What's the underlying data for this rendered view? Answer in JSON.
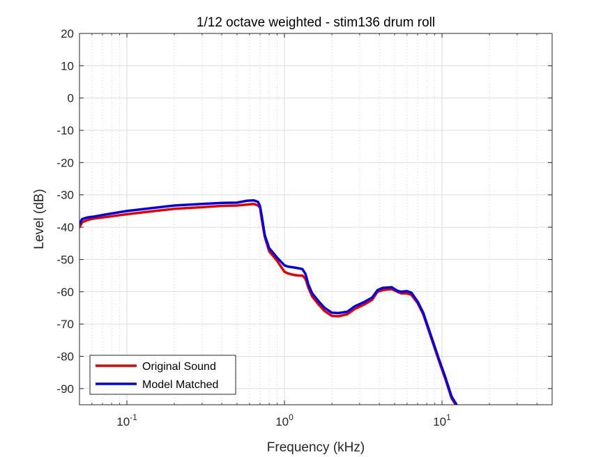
{
  "chart_data": {
    "type": "line",
    "title": "1/12 octave weighted - stim136 drum roll",
    "xlabel": "Frequency (kHz)",
    "ylabel": "Level (dB)",
    "xscale": "log",
    "xlim": [
      0.05,
      50
    ],
    "ylim": [
      -95,
      20
    ],
    "grid": true,
    "legend_position": "bottom-left",
    "x_tick_labels": [
      {
        "value": 0.1,
        "base": "10",
        "exp": "-1"
      },
      {
        "value": 1,
        "base": "10",
        "exp": "0"
      },
      {
        "value": 10,
        "base": "10",
        "exp": "1"
      }
    ],
    "y_ticks": [
      20,
      10,
      0,
      -10,
      -20,
      -30,
      -40,
      -50,
      -60,
      -70,
      -80,
      -90
    ],
    "series": [
      {
        "name": "Original Sound",
        "color": "#e60000",
        "x": [
          0.05,
          0.052,
          0.056,
          0.062,
          0.075,
          0.1,
          0.15,
          0.2,
          0.3,
          0.4,
          0.5,
          0.58,
          0.64,
          0.68,
          0.7,
          0.72,
          0.75,
          0.8,
          0.85,
          0.9,
          1.0,
          1.05,
          1.15,
          1.25,
          1.3,
          1.36,
          1.42,
          1.5,
          1.65,
          1.8,
          2.0,
          2.2,
          2.5,
          2.8,
          3.2,
          3.6,
          3.9,
          4.2,
          4.5,
          4.8,
          5.2,
          5.5,
          6.0,
          6.4,
          7.0,
          7.6,
          8.5,
          9.5,
          10.5,
          11.5,
          12.2
        ],
        "y": [
          -40.0,
          -38.5,
          -37.8,
          -37.3,
          -36.8,
          -36.0,
          -35.0,
          -34.3,
          -33.8,
          -33.4,
          -33.3,
          -33.0,
          -32.8,
          -33.3,
          -34.0,
          -38.0,
          -43.0,
          -47.5,
          -49.0,
          -50.5,
          -53.8,
          -54.3,
          -54.8,
          -55.0,
          -55.0,
          -56.0,
          -58.8,
          -61.5,
          -64.0,
          -66.0,
          -67.5,
          -67.6,
          -67.0,
          -65.3,
          -64.0,
          -62.5,
          -60.0,
          -59.5,
          -59.3,
          -59.2,
          -60.0,
          -60.5,
          -60.5,
          -61.0,
          -63.5,
          -67.0,
          -74.0,
          -81.0,
          -87.0,
          -93.0,
          -95.0
        ]
      },
      {
        "name": "Model Matched",
        "color": "#0000e6",
        "x": [
          0.05,
          0.052,
          0.056,
          0.062,
          0.075,
          0.1,
          0.15,
          0.2,
          0.3,
          0.4,
          0.5,
          0.58,
          0.64,
          0.68,
          0.7,
          0.72,
          0.75,
          0.8,
          0.85,
          0.9,
          1.0,
          1.05,
          1.15,
          1.25,
          1.3,
          1.36,
          1.42,
          1.5,
          1.65,
          1.8,
          2.0,
          2.2,
          2.5,
          2.8,
          3.2,
          3.6,
          3.9,
          4.2,
          4.5,
          4.8,
          5.2,
          5.5,
          6.0,
          6.4,
          7.0,
          7.6,
          8.5,
          9.5,
          10.5,
          11.5,
          12.4
        ],
        "y": [
          -39.0,
          -37.5,
          -37.0,
          -36.7,
          -36.0,
          -35.0,
          -34.0,
          -33.3,
          -32.8,
          -32.5,
          -32.4,
          -31.8,
          -31.7,
          -32.2,
          -33.5,
          -37.0,
          -42.5,
          -46.5,
          -48.0,
          -49.5,
          -51.8,
          -52.2,
          -52.5,
          -52.8,
          -53.0,
          -54.5,
          -57.8,
          -60.5,
          -63.0,
          -65.0,
          -66.5,
          -66.6,
          -66.2,
          -64.5,
          -63.2,
          -61.8,
          -59.5,
          -58.8,
          -58.7,
          -58.6,
          -59.7,
          -60.0,
          -59.8,
          -60.3,
          -63.0,
          -66.5,
          -73.5,
          -80.5,
          -86.5,
          -92.5,
          -95.0
        ]
      }
    ]
  }
}
